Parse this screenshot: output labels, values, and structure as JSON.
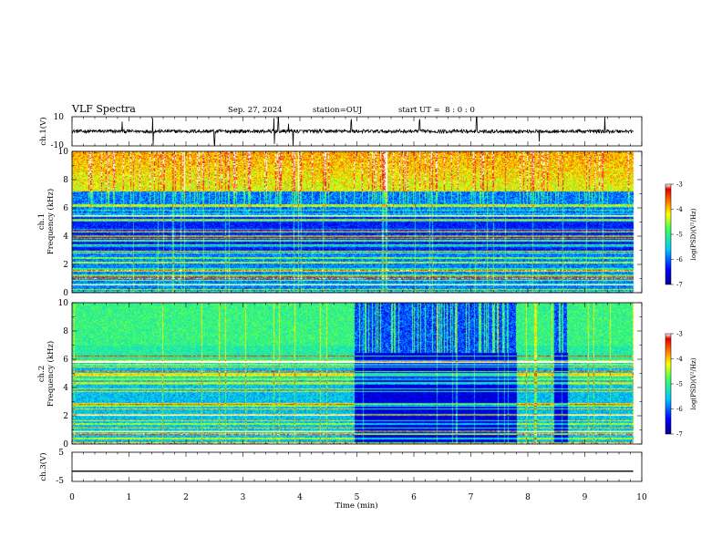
{
  "header": {
    "title": "VLF Spectra",
    "date": "Sep. 27, 2024",
    "station": "station=OUJ",
    "start": "start UT =  8 : 0 : 0"
  },
  "chart_data": [
    {
      "id": "ch1-waveform",
      "type": "line",
      "ylabel": "ch.1(V)",
      "ylim": [
        -10,
        10
      ],
      "yticks": [
        "10",
        "-10"
      ],
      "xlim": [
        0,
        10
      ],
      "description_level": 0,
      "noise_amplitude": 1.2,
      "spike_times_min": [
        0.88,
        1.42,
        2.5,
        3.55,
        3.62,
        3.8,
        3.88,
        4.9,
        6.1,
        7.1,
        8.2,
        9.35
      ]
    },
    {
      "id": "ch1-spectrogram",
      "type": "heatmap",
      "ylabel": "ch.1\nFrequency (kHz)",
      "ylabel_lines": [
        "ch.1",
        "Frequency (kHz)"
      ],
      "ylim": [
        0,
        10
      ],
      "yticks": [
        "0",
        "2",
        "4",
        "6",
        "8",
        "10"
      ],
      "xlim": [
        0,
        10
      ],
      "colorbar": {
        "label": "log(PSD)(V²/Hz)",
        "range": [
          -7,
          -3
        ],
        "ticks": [
          "-3",
          "-4",
          "-5",
          "-6",
          "-7"
        ]
      },
      "data_end_min": 9.85
    },
    {
      "id": "ch2-spectrogram",
      "type": "heatmap",
      "ylabel": "ch.2\nFrequency (kHz)",
      "ylabel_lines": [
        "ch.2",
        "Frequency (kHz)"
      ],
      "ylim": [
        0,
        10
      ],
      "yticks": [
        "0",
        "2",
        "4",
        "6",
        "8",
        "10"
      ],
      "xlim": [
        0,
        10
      ],
      "colorbar": {
        "label": "log(PSD)(V²/Hz)",
        "range": [
          -7,
          -3
        ],
        "ticks": [
          "-3",
          "-4",
          "-5",
          "-6",
          "-7"
        ]
      },
      "data_end_min": 9.85,
      "quiet_intervals_min": [
        [
          4.95,
          7.8
        ],
        [
          8.45,
          8.7
        ]
      ]
    },
    {
      "id": "ch3-waveform",
      "type": "line",
      "ylabel": "ch.3(V)",
      "ylim": [
        -5,
        5
      ],
      "yticks": [
        "5",
        "-5"
      ],
      "xlim": [
        0,
        10
      ],
      "constant_value": -1.5
    }
  ],
  "x_axis": {
    "label": "Time (min)",
    "ticks": [
      "0",
      "1",
      "2",
      "3",
      "4",
      "5",
      "6",
      "7",
      "8",
      "9",
      "10"
    ],
    "range": [
      0,
      10
    ]
  }
}
